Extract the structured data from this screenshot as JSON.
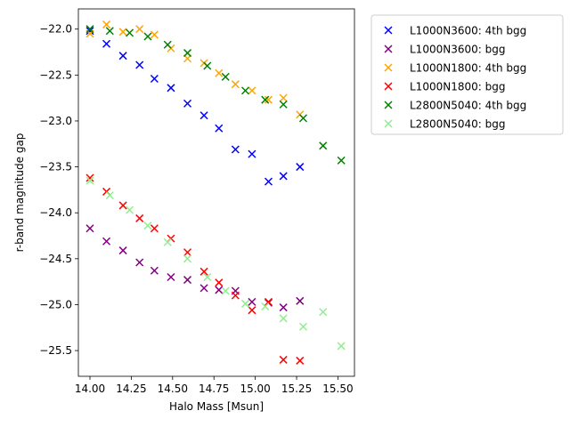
{
  "chart_data": {
    "type": "scatter",
    "title": "",
    "xlabel": "Halo Mass [Msun]",
    "ylabel": "r-band magnitude gap",
    "xlim": [
      13.93,
      15.6
    ],
    "ylim": [
      -25.78,
      -21.78
    ],
    "xticks": [
      14.0,
      14.25,
      14.5,
      14.75,
      15.0,
      15.25,
      15.5
    ],
    "xtick_labels": [
      "14.00",
      "14.25",
      "14.50",
      "14.75",
      "15.00",
      "15.25",
      "15.50"
    ],
    "yticks": [
      -22.0,
      -22.5,
      -23.0,
      -23.5,
      -24.0,
      -24.5,
      -25.0,
      -25.5
    ],
    "ytick_labels": [
      "−22.0",
      "−22.5",
      "−23.0",
      "−23.5",
      "−24.0",
      "−24.5",
      "−25.0",
      "−25.5"
    ],
    "legend_position": "outside-top-right",
    "series": [
      {
        "name": "L1000N3600: 4th bgg",
        "color": "#0000ff",
        "x": [
          14.0,
          14.1,
          14.2,
          14.3,
          14.39,
          14.49,
          14.59,
          14.69,
          14.78,
          14.88,
          14.98,
          15.08,
          15.17,
          15.27
        ],
        "y": [
          -22.02,
          -22.16,
          -22.29,
          -22.39,
          -22.54,
          -22.64,
          -22.81,
          -22.94,
          -23.08,
          -23.31,
          -23.36,
          -23.66,
          -23.6,
          -23.5
        ]
      },
      {
        "name": "L1000N3600: bgg",
        "color": "#800080",
        "x": [
          14.0,
          14.1,
          14.2,
          14.3,
          14.39,
          14.49,
          14.59,
          14.69,
          14.78,
          14.88,
          14.98,
          15.08,
          15.17,
          15.27
        ],
        "y": [
          -24.17,
          -24.31,
          -24.41,
          -24.54,
          -24.63,
          -24.7,
          -24.73,
          -24.82,
          -24.84,
          -24.85,
          -24.97,
          -24.98,
          -25.03,
          -24.96
        ]
      },
      {
        "name": "L1000N1800: 4th bgg",
        "color": "#ffa500",
        "x": [
          14.0,
          14.1,
          14.2,
          14.3,
          14.39,
          14.49,
          14.59,
          14.69,
          14.78,
          14.88,
          14.98,
          15.08,
          15.17,
          15.27
        ],
        "y": [
          -22.05,
          -21.95,
          -22.03,
          -22.0,
          -22.06,
          -22.21,
          -22.32,
          -22.37,
          -22.48,
          -22.6,
          -22.67,
          -22.77,
          -22.75,
          -22.93
        ]
      },
      {
        "name": "L1000N1800: bgg",
        "color": "#ff0000",
        "x": [
          14.0,
          14.1,
          14.2,
          14.3,
          14.39,
          14.49,
          14.59,
          14.69,
          14.78,
          14.88,
          14.98,
          15.08,
          15.17,
          15.27
        ],
        "y": [
          -23.62,
          -23.77,
          -23.92,
          -24.06,
          -24.17,
          -24.28,
          -24.43,
          -24.64,
          -24.76,
          -24.9,
          -25.06,
          -24.97,
          -25.6,
          -25.61
        ]
      },
      {
        "name": "L2800N5040: 4th bgg",
        "color": "#008000",
        "x": [
          14.0,
          14.12,
          14.24,
          14.35,
          14.47,
          14.59,
          14.71,
          14.82,
          14.94,
          15.06,
          15.17,
          15.29,
          15.41,
          15.52
        ],
        "y": [
          -22.0,
          -22.02,
          -22.04,
          -22.08,
          -22.17,
          -22.26,
          -22.4,
          -22.52,
          -22.67,
          -22.77,
          -22.82,
          -22.97,
          -23.27,
          -23.43
        ]
      },
      {
        "name": "L2800N5040: bgg",
        "color": "#90ee90",
        "x": [
          14.0,
          14.12,
          14.24,
          14.35,
          14.47,
          14.59,
          14.71,
          14.82,
          14.94,
          15.06,
          15.17,
          15.29,
          15.41,
          15.52
        ],
        "y": [
          -23.65,
          -23.81,
          -23.97,
          -24.14,
          -24.32,
          -24.5,
          -24.7,
          -24.85,
          -24.99,
          -25.02,
          -25.15,
          -25.24,
          -25.08,
          -25.45
        ]
      }
    ]
  }
}
